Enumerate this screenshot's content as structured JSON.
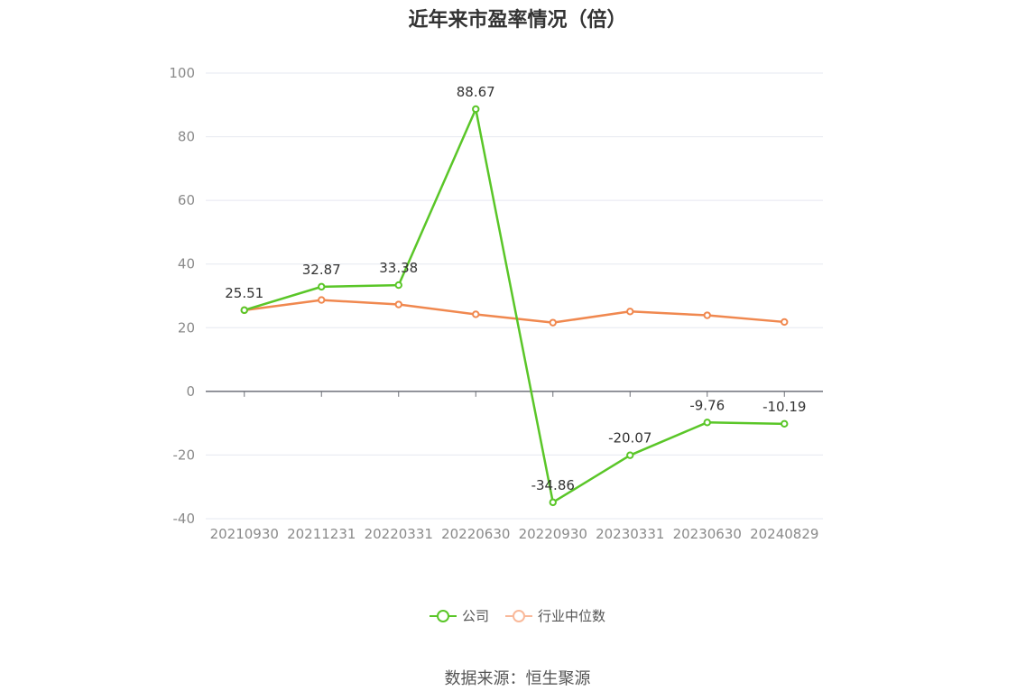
{
  "chart_data": {
    "type": "line",
    "title": "近年来市盈率情况（倍）",
    "categories": [
      "20210930",
      "20211231",
      "20220331",
      "20220630",
      "20220930",
      "20230331",
      "20230630",
      "20240829"
    ],
    "series": [
      {
        "name": "公司",
        "color": "#5ac628",
        "values": [
          25.51,
          32.87,
          33.38,
          88.67,
          -34.86,
          -20.07,
          -9.76,
          -10.19
        ],
        "labels": [
          "25.51",
          "32.87",
          "33.38",
          "88.67",
          "-34.86",
          "-20.07",
          "-9.76",
          "-10.19"
        ]
      },
      {
        "name": "行业中位数",
        "color": "#f0884f",
        "values": [
          25.5,
          28.7,
          27.3,
          24.2,
          21.6,
          25.1,
          23.9,
          21.8
        ]
      }
    ],
    "ylim": [
      -40,
      100
    ],
    "yticks": [
      "-40",
      "-20",
      "0",
      "20",
      "40",
      "60",
      "80",
      "100"
    ],
    "grid": true,
    "legend": "bottom-center"
  },
  "legend_colors": {
    "company_light": "#5ac628",
    "industry_light": "#f9b99a"
  },
  "source": "数据来源：恒生聚源"
}
